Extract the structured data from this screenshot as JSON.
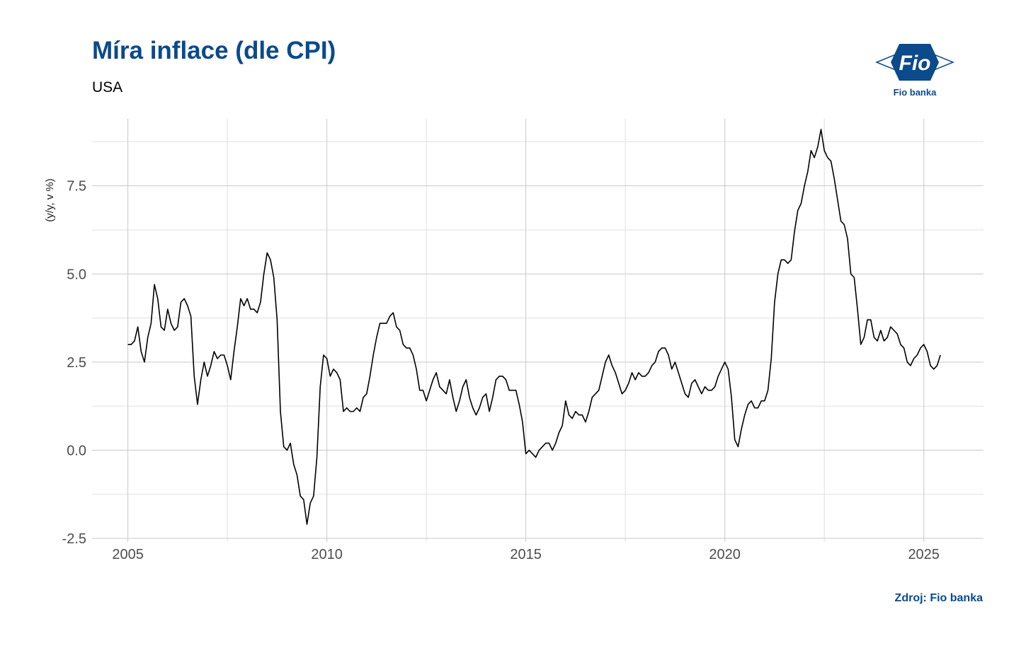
{
  "header": {
    "title": "Míra inflace (dle CPI)",
    "subtitle": "USA"
  },
  "footer": {
    "source": "Zdroj: Fio banka"
  },
  "logo": {
    "mark_text": "Fio",
    "caption": "Fio banka",
    "color": "#0b4a8b"
  },
  "chart_data": {
    "type": "line",
    "title": "Míra inflace (dle CPI)",
    "subtitle": "USA",
    "xlabel": "",
    "ylabel": "(y/y, v %)",
    "xlim": [
      2004.1,
      2026.5
    ],
    "ylim": [
      -2.6,
      9.4
    ],
    "x_major_ticks": [
      2005,
      2010,
      2015,
      2020,
      2025
    ],
    "x_tick_labels": [
      "2005",
      "2010",
      "2015",
      "2020",
      "2025"
    ],
    "x_minor_ticks": [
      2007.5,
      2012.5,
      2017.5,
      2022.5
    ],
    "y_major_ticks": [
      -2.5,
      0.0,
      2.5,
      5.0,
      7.5
    ],
    "y_tick_labels": [
      "-2.5",
      "0.0",
      "2.5",
      "5.0",
      "7.5"
    ],
    "y_minor_ticks": [
      -1.25,
      1.25,
      3.75,
      6.25,
      8.75
    ],
    "grid": true,
    "legend": "none",
    "line_color": "#000000",
    "x_start": "2005-01",
    "x_step": "1 month",
    "series": [
      {
        "name": "",
        "values": [
          3.0,
          3.0,
          3.1,
          3.5,
          2.8,
          2.5,
          3.2,
          3.6,
          4.7,
          4.3,
          3.5,
          3.4,
          4.0,
          3.6,
          3.4,
          3.5,
          4.2,
          4.3,
          4.1,
          3.8,
          2.1,
          1.3,
          2.0,
          2.5,
          2.1,
          2.4,
          2.8,
          2.6,
          2.7,
          2.7,
          2.4,
          2.0,
          2.8,
          3.5,
          4.3,
          4.1,
          4.3,
          4.0,
          4.0,
          3.9,
          4.2,
          5.0,
          5.6,
          5.4,
          4.9,
          3.7,
          1.1,
          0.1,
          0.0,
          0.2,
          -0.4,
          -0.7,
          -1.3,
          -1.4,
          -2.1,
          -1.5,
          -1.3,
          -0.2,
          1.8,
          2.7,
          2.6,
          2.1,
          2.3,
          2.2,
          2.0,
          1.1,
          1.2,
          1.1,
          1.1,
          1.2,
          1.1,
          1.5,
          1.6,
          2.1,
          2.7,
          3.2,
          3.6,
          3.6,
          3.6,
          3.8,
          3.9,
          3.5,
          3.4,
          3.0,
          2.9,
          2.9,
          2.7,
          2.3,
          1.7,
          1.7,
          1.4,
          1.7,
          2.0,
          2.2,
          1.8,
          1.7,
          1.6,
          2.0,
          1.5,
          1.1,
          1.4,
          1.8,
          2.0,
          1.5,
          1.2,
          1.0,
          1.2,
          1.5,
          1.6,
          1.1,
          1.5,
          2.0,
          2.1,
          2.1,
          2.0,
          1.7,
          1.7,
          1.7,
          1.3,
          0.8,
          -0.1,
          0.0,
          -0.1,
          -0.2,
          0.0,
          0.1,
          0.2,
          0.2,
          0.0,
          0.2,
          0.5,
          0.7,
          1.4,
          1.0,
          0.9,
          1.1,
          1.0,
          1.0,
          0.8,
          1.1,
          1.5,
          1.6,
          1.7,
          2.1,
          2.5,
          2.7,
          2.4,
          2.2,
          1.9,
          1.6,
          1.7,
          1.9,
          2.2,
          2.0,
          2.2,
          2.1,
          2.1,
          2.2,
          2.4,
          2.5,
          2.8,
          2.9,
          2.9,
          2.7,
          2.3,
          2.5,
          2.2,
          1.9,
          1.6,
          1.5,
          1.9,
          2.0,
          1.8,
          1.6,
          1.8,
          1.7,
          1.7,
          1.8,
          2.1,
          2.3,
          2.5,
          2.3,
          1.5,
          0.3,
          0.1,
          0.6,
          1.0,
          1.3,
          1.4,
          1.2,
          1.2,
          1.4,
          1.4,
          1.7,
          2.6,
          4.2,
          5.0,
          5.4,
          5.4,
          5.3,
          5.4,
          6.2,
          6.8,
          7.0,
          7.5,
          7.9,
          8.5,
          8.3,
          8.6,
          9.1,
          8.5,
          8.3,
          8.2,
          7.7,
          7.1,
          6.5,
          6.4,
          6.0,
          5.0,
          4.9,
          4.0,
          3.0,
          3.2,
          3.7,
          3.7,
          3.2,
          3.1,
          3.4,
          3.1,
          3.2,
          3.5,
          3.4,
          3.3,
          3.0,
          2.9,
          2.5,
          2.4,
          2.6,
          2.7,
          2.9,
          3.0,
          2.8,
          2.4,
          2.3,
          2.4,
          2.7
        ]
      }
    ]
  }
}
